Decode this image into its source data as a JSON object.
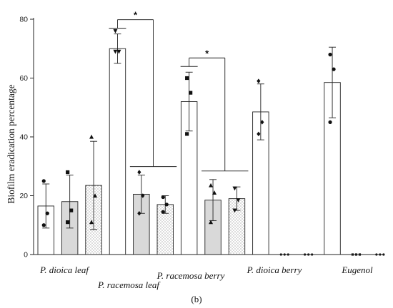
{
  "chart_data": {
    "type": "bar",
    "title": "",
    "xlabel": "",
    "ylabel": "Biofilm eradication percentage",
    "ylim": [
      0,
      80
    ],
    "yticks": [
      "0",
      "20",
      "40",
      "60",
      "80"
    ],
    "grid": false,
    "legend": "none",
    "categories": [
      "P. dioica leaf",
      "P. racemosa leaf",
      "P. racemosa berry",
      "P. dioica berry",
      "Eugenol"
    ],
    "bar_styles": [
      {
        "fill": "#ffffff",
        "pattern": "none"
      },
      {
        "fill": "#d9d9d9",
        "pattern": "none"
      },
      {
        "fill": "#ffffff",
        "pattern": "dots"
      }
    ],
    "marker_shapes": [
      "circle",
      "square",
      "triangle",
      "triangle-down",
      "diamond"
    ],
    "bars": [
      {
        "category": 0,
        "style": 0,
        "value": 16.5,
        "err": 7.5,
        "marker": "circle",
        "points": [
          25,
          14,
          10
        ]
      },
      {
        "category": 0,
        "style": 1,
        "value": 18,
        "err": 9,
        "marker": "square",
        "points": [
          28,
          15,
          11
        ]
      },
      {
        "category": 0,
        "style": 2,
        "value": 23.5,
        "err": 15,
        "marker": "triangle",
        "points": [
          40,
          20,
          11
        ]
      },
      {
        "category": 1,
        "style": 0,
        "value": 70,
        "err": 5,
        "marker": "triangle-down",
        "points": [
          76,
          69,
          69
        ]
      },
      {
        "category": 1,
        "style": 1,
        "value": 20.5,
        "err": 6.5,
        "marker": "diamond",
        "points": [
          28,
          20,
          14
        ]
      },
      {
        "category": 1,
        "style": 2,
        "value": 17,
        "err": 3,
        "marker": "circle",
        "points": [
          19.5,
          17,
          14.5
        ]
      },
      {
        "category": 2,
        "style": 0,
        "value": 52,
        "err": 10,
        "marker": "square",
        "points": [
          60,
          55,
          41
        ]
      },
      {
        "category": 2,
        "style": 1,
        "value": 18.5,
        "err": 7,
        "marker": "triangle",
        "points": [
          23.5,
          21,
          11
        ]
      },
      {
        "category": 2,
        "style": 2,
        "value": 19,
        "err": 4,
        "marker": "triangle-down",
        "points": [
          22.5,
          18.5,
          15
        ]
      },
      {
        "category": 3,
        "style": 0,
        "value": 48.5,
        "err": 9.5,
        "marker": "diamond",
        "points": [
          59,
          45,
          41
        ]
      },
      {
        "category": 3,
        "style": 1,
        "value": 0,
        "err": 0,
        "marker": "circle",
        "points": [
          0,
          0,
          0
        ]
      },
      {
        "category": 3,
        "style": 2,
        "value": 0,
        "err": 0,
        "marker": "circle",
        "points": [
          0,
          0,
          0
        ]
      },
      {
        "category": 4,
        "style": 0,
        "value": 58.5,
        "err": 12,
        "marker": "circle",
        "points": [
          68,
          63,
          45
        ]
      },
      {
        "category": 4,
        "style": 1,
        "value": 0,
        "err": 0,
        "marker": "square",
        "points": [
          0,
          0,
          0
        ]
      },
      {
        "category": 4,
        "style": 2,
        "value": 0,
        "err": 0,
        "marker": "circle",
        "points": [
          0,
          0,
          0
        ]
      }
    ],
    "significance": [
      {
        "label": "*",
        "group_a": 3,
        "group_b_start": 4,
        "group_b_end": 5
      },
      {
        "label": "*",
        "group_a": 6,
        "group_b_start": 7,
        "group_b_end": 8
      }
    ]
  },
  "figure": {
    "panel_label": "(b)"
  }
}
